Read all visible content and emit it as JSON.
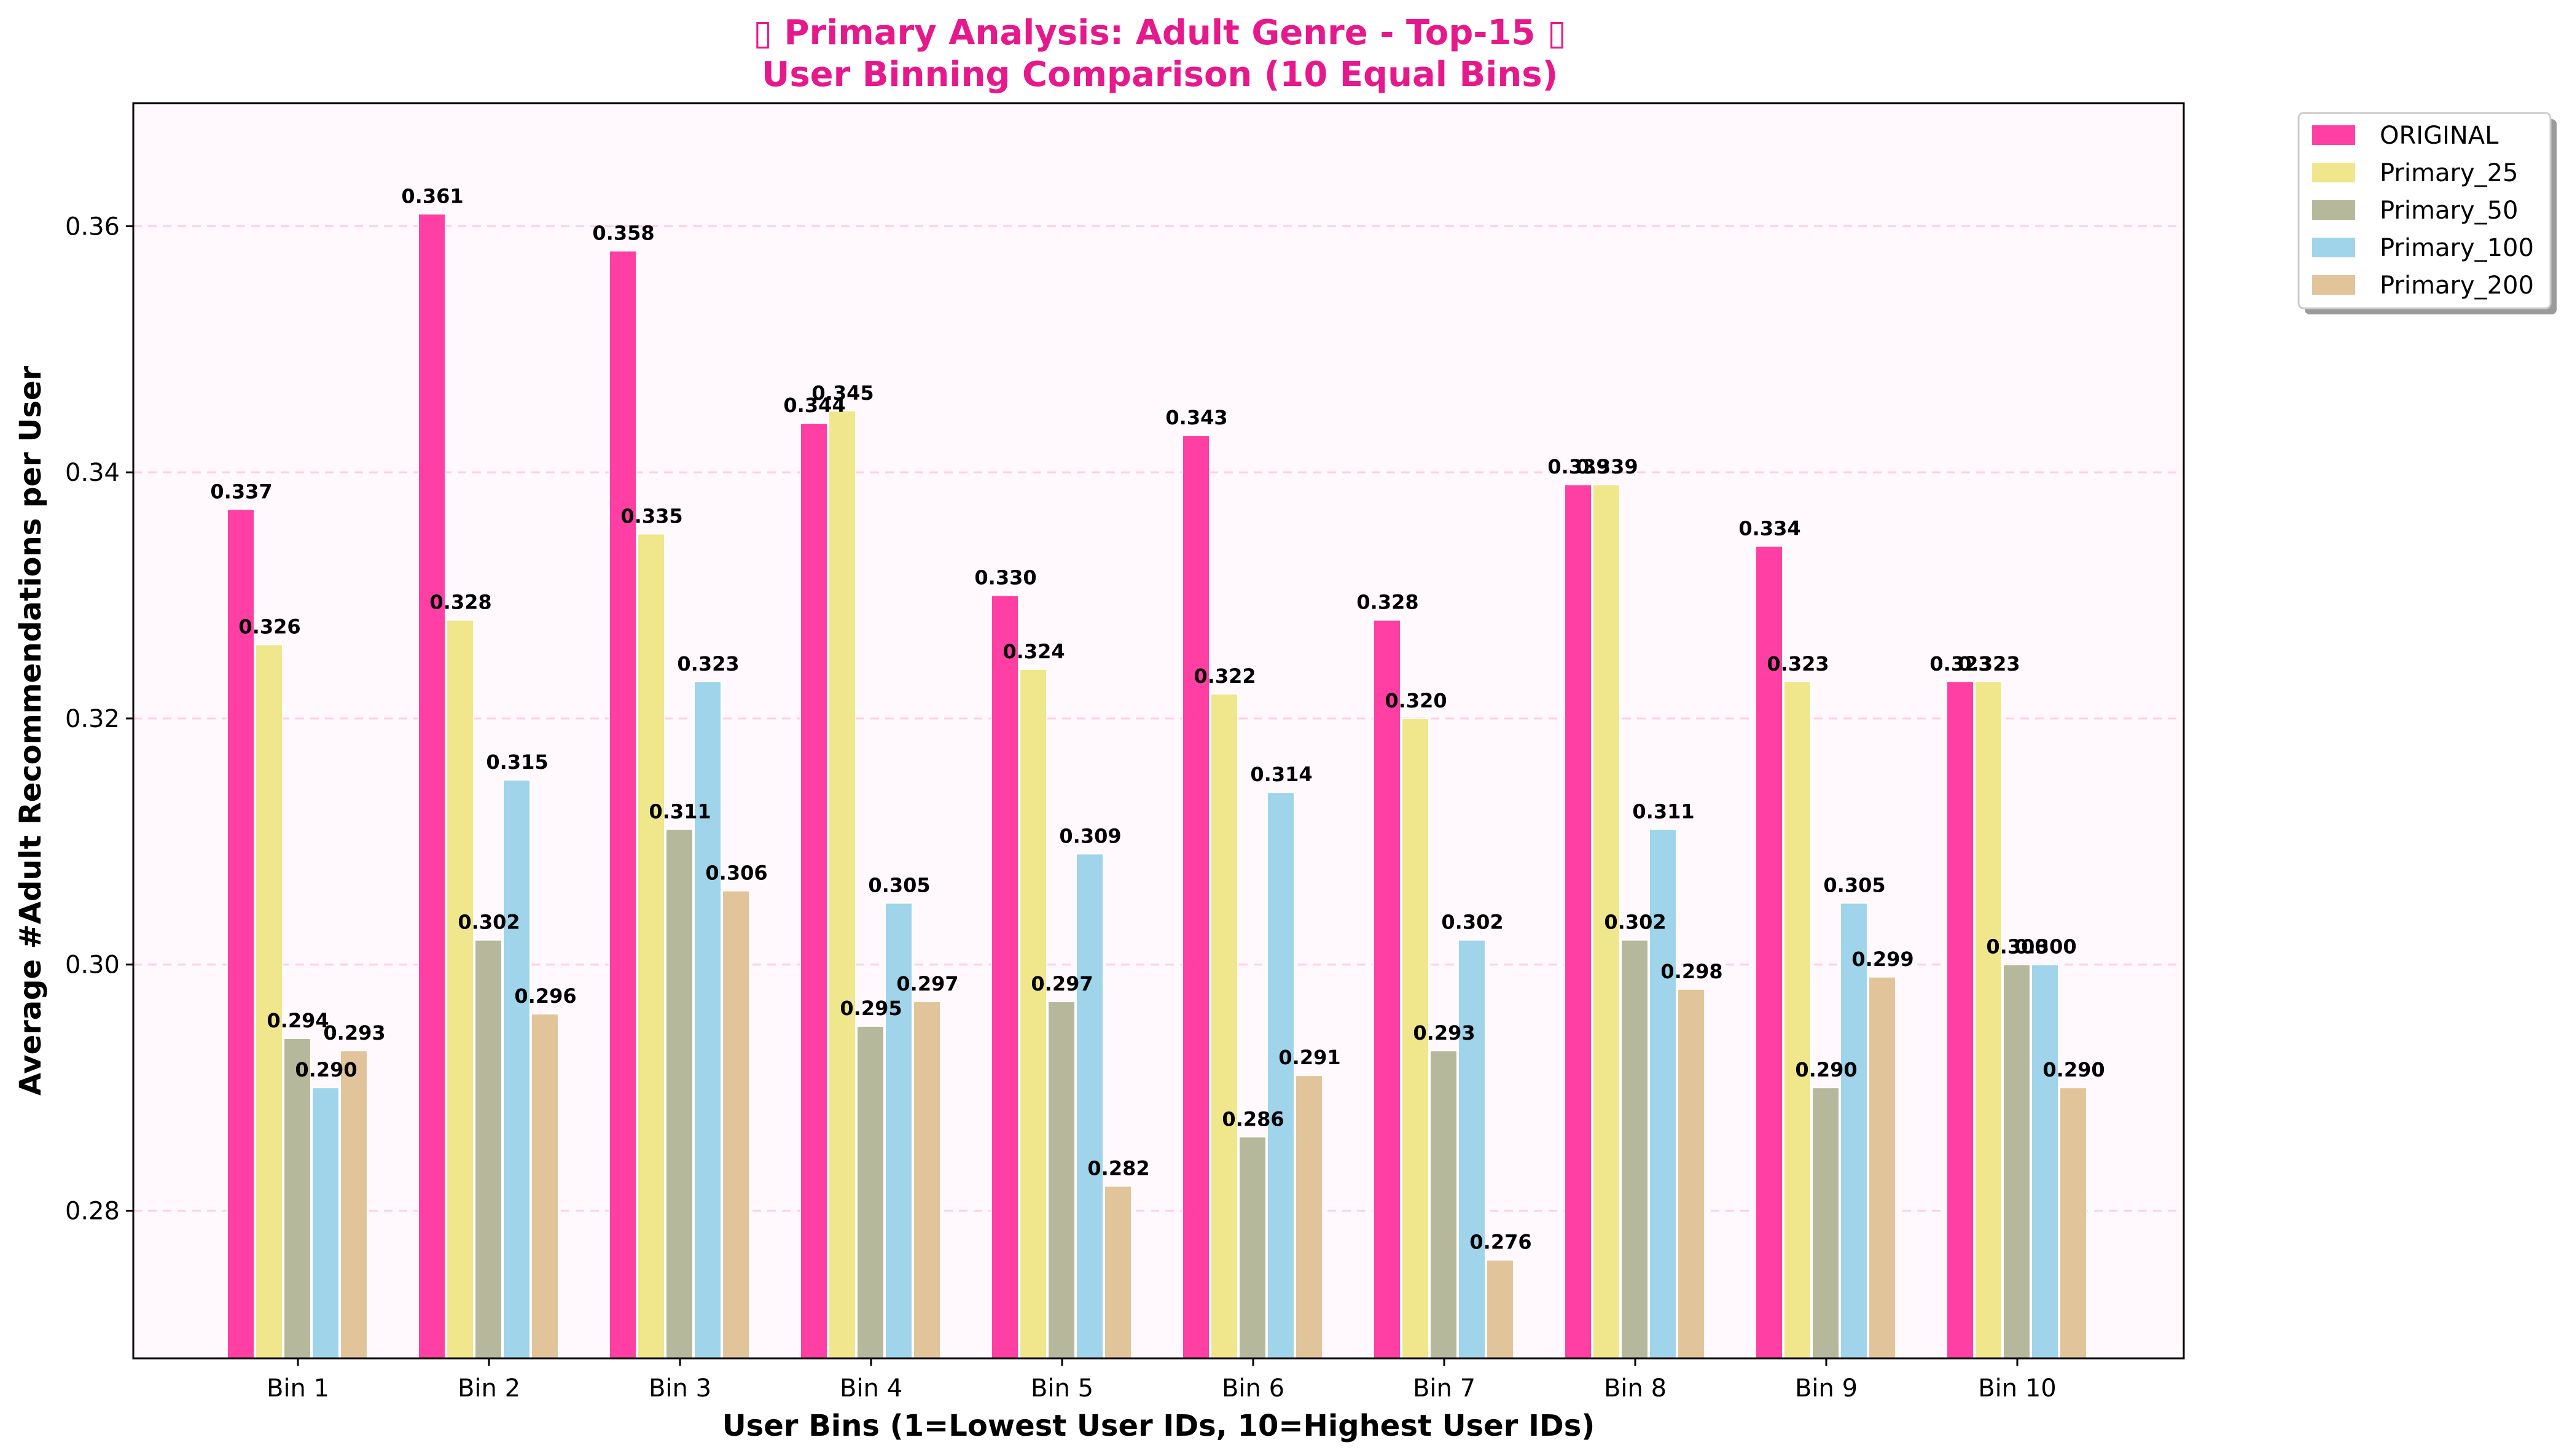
{
  "chart_data": {
    "type": "bar",
    "title_line1": "▯ Primary Analysis: Adult Genre - Top-15 ▯",
    "title_line2": "User Binning Comparison (10 Equal Bins)",
    "xlabel": "User Bins (1=Lowest User IDs, 10=Highest User IDs)",
    "ylabel": "Average #Adult Recommendations per User",
    "ylim": [
      0.268,
      0.37
    ],
    "yticks": [
      0.28,
      0.3,
      0.32,
      0.34,
      0.36
    ],
    "ytick_labels": [
      "0.28",
      "0.30",
      "0.32",
      "0.34",
      "0.36"
    ],
    "grid": true,
    "legend_position": "outside top-right",
    "categories": [
      "Bin 1",
      "Bin 2",
      "Bin 3",
      "Bin 4",
      "Bin 5",
      "Bin 6",
      "Bin 7",
      "Bin 8",
      "Bin 9",
      "Bin 10"
    ],
    "series": [
      {
        "name": "ORIGINAL",
        "color": "#ff3fa4",
        "values": [
          0.337,
          0.361,
          0.358,
          0.344,
          0.33,
          0.343,
          0.328,
          0.339,
          0.334,
          0.323
        ],
        "labels": [
          "0.337",
          "0.361",
          "0.358",
          "0.344",
          "0.330",
          "0.343",
          "0.328",
          "0.339",
          "0.334",
          "0.323"
        ]
      },
      {
        "name": "Primary_25",
        "color": "#f0e68c",
        "values": [
          0.326,
          0.328,
          0.335,
          0.345,
          0.324,
          0.322,
          0.32,
          0.339,
          0.323,
          0.323
        ],
        "labels": [
          "0.326",
          "0.328",
          "0.335",
          "0.345",
          "0.324",
          "0.322",
          "0.320",
          "0.339",
          "0.323",
          "0.323"
        ]
      },
      {
        "name": "Primary_50",
        "color": "#b5b89a",
        "values": [
          0.294,
          0.302,
          0.311,
          0.295,
          0.297,
          0.286,
          0.293,
          0.302,
          0.29,
          0.3
        ],
        "labels": [
          "0.294",
          "0.302",
          "0.311",
          "0.295",
          "0.297",
          "0.286",
          "0.293",
          "0.302",
          "0.290",
          "0.300"
        ]
      },
      {
        "name": "Primary_100",
        "color": "#9fd4ea",
        "values": [
          0.29,
          0.315,
          0.323,
          0.305,
          0.309,
          0.314,
          0.302,
          0.311,
          0.305,
          0.3
        ],
        "labels": [
          "0.290",
          "0.315",
          "0.323",
          "0.305",
          "0.309",
          "0.314",
          "0.302",
          "0.311",
          "0.305",
          "0.300"
        ]
      },
      {
        "name": "Primary_200",
        "color": "#e2c49b",
        "values": [
          0.293,
          0.296,
          0.306,
          0.297,
          0.282,
          0.291,
          0.276,
          0.298,
          0.299,
          0.29
        ],
        "labels": [
          "0.293",
          "0.296",
          "0.306",
          "0.297",
          "0.282",
          "0.291",
          "0.276",
          "0.298",
          "0.299",
          "0.290"
        ]
      }
    ],
    "colors": {
      "plot_background": "#fff8fc",
      "grid": "#fbd0e4",
      "title": "#e6198c"
    }
  }
}
